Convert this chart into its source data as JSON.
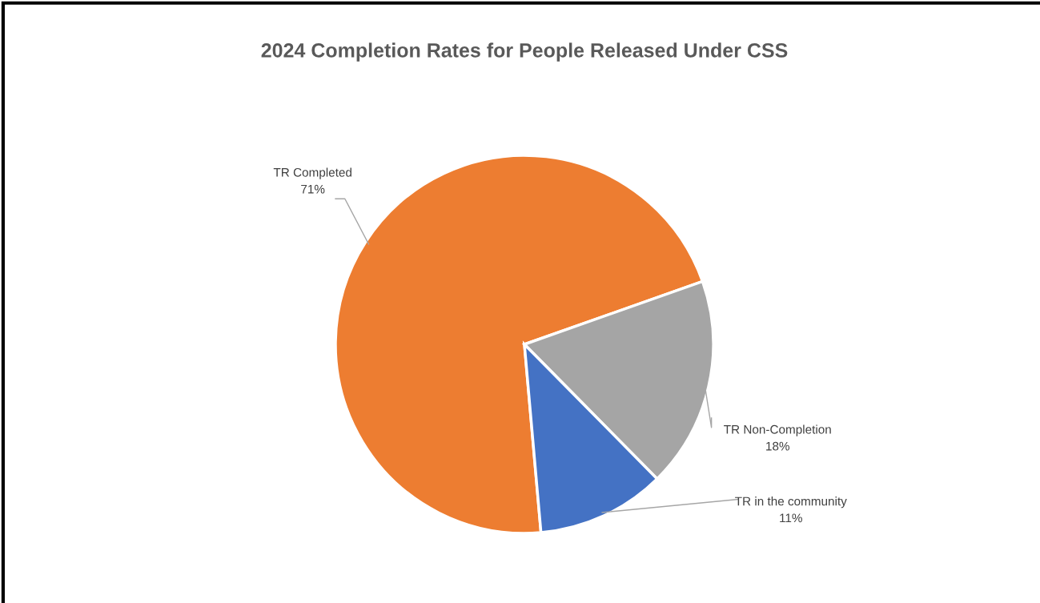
{
  "chart_data": {
    "type": "pie",
    "title": "2024 Completion Rates for People Released Under CSS",
    "categories": [
      "TR Completed",
      "TR Non-Completion",
      "TR in the community"
    ],
    "values": [
      71,
      18,
      11
    ],
    "value_labels": [
      "71%",
      "18%",
      "11%"
    ],
    "colors": [
      "#ed7d31",
      "#a5a5a5",
      "#4472c4"
    ]
  }
}
